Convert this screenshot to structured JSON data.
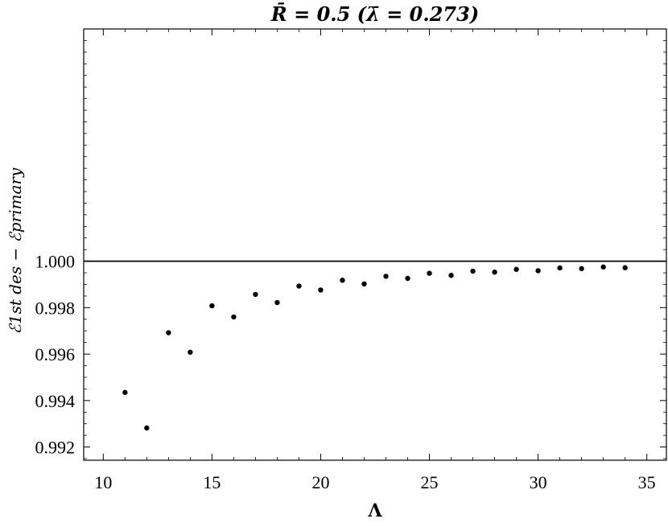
{
  "chart_data": {
    "type": "scatter",
    "title": "R̄ = 0.5 (λ̄ = 0.273)",
    "xlabel": "Λ",
    "ylabel": "ℰ1st des − ℰprimary",
    "xlim": [
      9.1,
      35.9
    ],
    "ylim": [
      0.99143,
      1.01
    ],
    "xticks": [
      10,
      15,
      20,
      25,
      30,
      35
    ],
    "yticks": [
      0.992,
      0.994,
      0.996,
      0.998,
      1.0
    ],
    "ytick_labels": [
      "0.992",
      "0.994",
      "0.996",
      "0.998",
      "1.000"
    ],
    "reference_line": 1.0,
    "grid": false,
    "points": [
      {
        "x": 11,
        "y": 0.99435
      },
      {
        "x": 12,
        "y": 0.99282
      },
      {
        "x": 13,
        "y": 0.99692
      },
      {
        "x": 14,
        "y": 0.99608
      },
      {
        "x": 15,
        "y": 0.99808
      },
      {
        "x": 16,
        "y": 0.9976
      },
      {
        "x": 17,
        "y": 0.99857
      },
      {
        "x": 18,
        "y": 0.99822
      },
      {
        "x": 19,
        "y": 0.99893
      },
      {
        "x": 20,
        "y": 0.99876
      },
      {
        "x": 21,
        "y": 0.99918
      },
      {
        "x": 22,
        "y": 0.99902
      },
      {
        "x": 23,
        "y": 0.99935
      },
      {
        "x": 24,
        "y": 0.99926
      },
      {
        "x": 25,
        "y": 0.99948
      },
      {
        "x": 26,
        "y": 0.99939
      },
      {
        "x": 27,
        "y": 0.99957
      },
      {
        "x": 28,
        "y": 0.99953
      },
      {
        "x": 29,
        "y": 0.99965
      },
      {
        "x": 30,
        "y": 0.99959
      },
      {
        "x": 31,
        "y": 0.99971
      },
      {
        "x": 32,
        "y": 0.99968
      },
      {
        "x": 33,
        "y": 0.99975
      },
      {
        "x": 34,
        "y": 0.99972
      }
    ]
  }
}
